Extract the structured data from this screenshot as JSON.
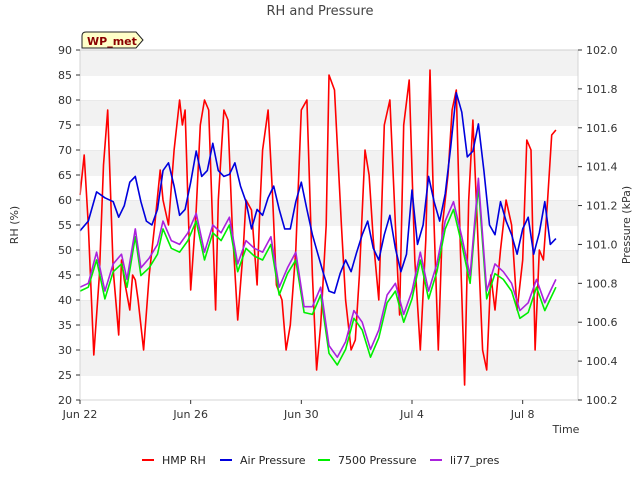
{
  "chart_data": {
    "type": "line",
    "title": "RH and Pressure",
    "badge": "WP_met",
    "xlabel": "Time",
    "ylabel_left": "RH (%)",
    "ylabel_right": "Pressure (kPa)",
    "x_ticks": [
      "Jun 22",
      "Jun 26",
      "Jun 30",
      "Jul 4",
      "Jul 8"
    ],
    "x_tick_days": [
      0,
      4,
      8,
      12,
      16
    ],
    "x_range_days": [
      0,
      18
    ],
    "ylim_left": [
      20,
      90
    ],
    "y_ticks_left": [
      20,
      25,
      30,
      35,
      40,
      45,
      50,
      55,
      60,
      65,
      70,
      75,
      80,
      85,
      90
    ],
    "ylim_right": [
      100.2,
      102.0
    ],
    "y_ticks_right": [
      "100.2",
      "100.4",
      "100.6",
      "100.8",
      "101.0",
      "101.2",
      "101.4",
      "101.6",
      "101.8",
      "102.0"
    ],
    "grid": "horizontal banded",
    "legend_position": "bottom",
    "series": [
      {
        "name": "HMP RH",
        "axis": "left",
        "color": "#ff0000",
        "days": [
          0.0,
          0.15,
          0.3,
          0.5,
          0.7,
          0.85,
          1.0,
          1.2,
          1.4,
          1.5,
          1.6,
          1.8,
          1.9,
          2.0,
          2.1,
          2.3,
          2.5,
          2.7,
          2.9,
          3.0,
          3.2,
          3.4,
          3.6,
          3.7,
          3.8,
          3.9,
          4.0,
          4.2,
          4.35,
          4.5,
          4.65,
          4.8,
          4.9,
          5.0,
          5.2,
          5.35,
          5.5,
          5.7,
          5.9,
          6.0,
          6.2,
          6.4,
          6.5,
          6.6,
          6.8,
          6.95,
          7.1,
          7.3,
          7.45,
          7.6,
          7.8,
          8.0,
          8.2,
          8.4,
          8.55,
          8.7,
          8.9,
          9.0,
          9.2,
          9.45,
          9.6,
          9.8,
          9.95,
          10.1,
          10.3,
          10.45,
          10.6,
          10.8,
          11.0,
          11.2,
          11.4,
          11.55,
          11.7,
          11.9,
          12.1,
          12.3,
          12.5,
          12.65,
          12.8,
          12.95,
          13.1,
          13.3,
          13.45,
          13.6,
          13.75,
          13.9,
          14.05,
          14.2,
          14.4,
          14.55,
          14.7,
          14.85,
          15.0,
          15.2,
          15.4,
          15.6,
          15.8,
          16.0,
          16.15,
          16.3,
          16.45,
          16.6,
          16.75,
          16.9,
          17.05,
          17.2
        ],
        "values": [
          61,
          69,
          55,
          29,
          45,
          67,
          78,
          46,
          33,
          48,
          44,
          38,
          45,
          44,
          40,
          30,
          45,
          55,
          66,
          60,
          55,
          70,
          80,
          75,
          78,
          60,
          42,
          58,
          75,
          80,
          78,
          54,
          38,
          60,
          78,
          76,
          55,
          36,
          50,
          60,
          58,
          43,
          58,
          70,
          78,
          62,
          43,
          40,
          30,
          35,
          50,
          78,
          80,
          45,
          26,
          35,
          55,
          85,
          82,
          55,
          40,
          30,
          32,
          45,
          70,
          65,
          52,
          40,
          75,
          80,
          55,
          37,
          75,
          84,
          48,
          30,
          52,
          86,
          55,
          30,
          55,
          65,
          78,
          82,
          50,
          23,
          60,
          76,
          50,
          30,
          26,
          45,
          38,
          50,
          60,
          55,
          38,
          48,
          72,
          70,
          30,
          50,
          48,
          60,
          73,
          74
        ]
      },
      {
        "name": "Air Pressure",
        "axis": "right",
        "color": "#0000dd",
        "days": [
          0.0,
          0.3,
          0.6,
          0.9,
          1.2,
          1.4,
          1.6,
          1.8,
          2.0,
          2.2,
          2.4,
          2.6,
          2.8,
          3.0,
          3.2,
          3.4,
          3.6,
          3.8,
          4.0,
          4.2,
          4.4,
          4.6,
          4.8,
          5.0,
          5.2,
          5.4,
          5.6,
          5.8,
          6.0,
          6.2,
          6.4,
          6.6,
          6.8,
          7.0,
          7.2,
          7.4,
          7.6,
          7.8,
          8.0,
          8.2,
          8.4,
          8.6,
          8.8,
          9.0,
          9.2,
          9.4,
          9.6,
          9.8,
          10.0,
          10.2,
          10.4,
          10.6,
          10.8,
          11.0,
          11.2,
          11.4,
          11.6,
          11.8,
          12.0,
          12.2,
          12.4,
          12.6,
          12.8,
          13.0,
          13.2,
          13.4,
          13.6,
          13.8,
          14.0,
          14.2,
          14.4,
          14.6,
          14.8,
          15.0,
          15.2,
          15.4,
          15.6,
          15.8,
          16.0,
          16.2,
          16.4,
          16.6,
          16.8,
          17.0,
          17.2
        ],
        "values": [
          101.07,
          101.12,
          101.27,
          101.24,
          101.22,
          101.14,
          101.2,
          101.32,
          101.35,
          101.22,
          101.12,
          101.1,
          101.18,
          101.38,
          101.42,
          101.3,
          101.15,
          101.18,
          101.32,
          101.48,
          101.35,
          101.38,
          101.52,
          101.38,
          101.35,
          101.36,
          101.42,
          101.3,
          101.22,
          101.08,
          101.18,
          101.15,
          101.24,
          101.3,
          101.18,
          101.08,
          101.08,
          101.22,
          101.32,
          101.18,
          101.05,
          100.95,
          100.85,
          100.76,
          100.75,
          100.85,
          100.92,
          100.86,
          100.96,
          101.05,
          101.12,
          100.98,
          100.92,
          101.05,
          101.15,
          100.98,
          100.86,
          100.95,
          101.28,
          101.0,
          101.1,
          101.35,
          101.22,
          101.12,
          101.26,
          101.5,
          101.78,
          101.68,
          101.45,
          101.48,
          101.62,
          101.38,
          101.1,
          101.05,
          101.22,
          101.12,
          101.05,
          100.95,
          101.08,
          101.14,
          100.95,
          101.06,
          101.22,
          101.0,
          101.03
        ]
      },
      {
        "name": "7500 Pressure",
        "axis": "right",
        "color": "#00ee00",
        "days": [
          0.0,
          0.3,
          0.6,
          0.9,
          1.2,
          1.5,
          1.7,
          2.0,
          2.2,
          2.5,
          2.8,
          3.0,
          3.3,
          3.6,
          3.9,
          4.2,
          4.5,
          4.8,
          5.1,
          5.4,
          5.7,
          6.0,
          6.3,
          6.6,
          6.9,
          7.2,
          7.5,
          7.8,
          8.1,
          8.4,
          8.7,
          9.0,
          9.3,
          9.6,
          9.9,
          10.2,
          10.5,
          10.8,
          11.1,
          11.4,
          11.7,
          12.0,
          12.3,
          12.6,
          12.9,
          13.2,
          13.5,
          13.8,
          14.1,
          14.4,
          14.7,
          15.0,
          15.3,
          15.6,
          15.9,
          16.2,
          16.5,
          16.8,
          17.0,
          17.2
        ],
        "values": [
          100.76,
          100.78,
          100.92,
          100.72,
          100.86,
          100.9,
          100.78,
          101.04,
          100.84,
          100.88,
          100.95,
          101.08,
          100.98,
          100.96,
          101.02,
          101.12,
          100.92,
          101.06,
          101.02,
          101.1,
          100.86,
          100.98,
          100.94,
          100.92,
          101.0,
          100.74,
          100.85,
          100.92,
          100.65,
          100.64,
          100.74,
          100.44,
          100.38,
          100.46,
          100.62,
          100.56,
          100.42,
          100.52,
          100.7,
          100.76,
          100.6,
          100.72,
          100.92,
          100.72,
          100.86,
          101.08,
          101.18,
          101.0,
          100.8,
          101.3,
          100.72,
          100.85,
          100.82,
          100.76,
          100.62,
          100.65,
          100.78,
          100.66,
          100.72,
          100.78
        ]
      },
      {
        "name": "li77_pres",
        "axis": "right",
        "color": "#aa22dd",
        "days": [
          0.0,
          0.3,
          0.6,
          0.9,
          1.2,
          1.5,
          1.7,
          2.0,
          2.2,
          2.5,
          2.8,
          3.0,
          3.3,
          3.6,
          3.9,
          4.2,
          4.5,
          4.8,
          5.1,
          5.4,
          5.7,
          6.0,
          6.3,
          6.6,
          6.9,
          7.2,
          7.5,
          7.8,
          8.1,
          8.4,
          8.7,
          9.0,
          9.3,
          9.6,
          9.9,
          10.2,
          10.5,
          10.8,
          11.1,
          11.4,
          11.7,
          12.0,
          12.3,
          12.6,
          12.9,
          13.2,
          13.5,
          13.8,
          14.1,
          14.4,
          14.7,
          15.0,
          15.3,
          15.6,
          15.9,
          16.2,
          16.5,
          16.8,
          17.0,
          17.2
        ],
        "values": [
          100.78,
          100.8,
          100.96,
          100.76,
          100.9,
          100.95,
          100.82,
          101.08,
          100.88,
          100.93,
          101.0,
          101.12,
          101.02,
          101.0,
          101.06,
          101.16,
          100.96,
          101.1,
          101.06,
          101.14,
          100.9,
          101.02,
          100.98,
          100.96,
          101.04,
          100.78,
          100.88,
          100.96,
          100.68,
          100.68,
          100.78,
          100.48,
          100.42,
          100.5,
          100.66,
          100.6,
          100.46,
          100.56,
          100.74,
          100.8,
          100.64,
          100.76,
          100.96,
          100.76,
          100.9,
          101.12,
          101.22,
          101.04,
          100.84,
          101.34,
          100.76,
          100.9,
          100.86,
          100.8,
          100.66,
          100.7,
          100.82,
          100.7,
          100.76,
          100.82
        ]
      }
    ]
  }
}
